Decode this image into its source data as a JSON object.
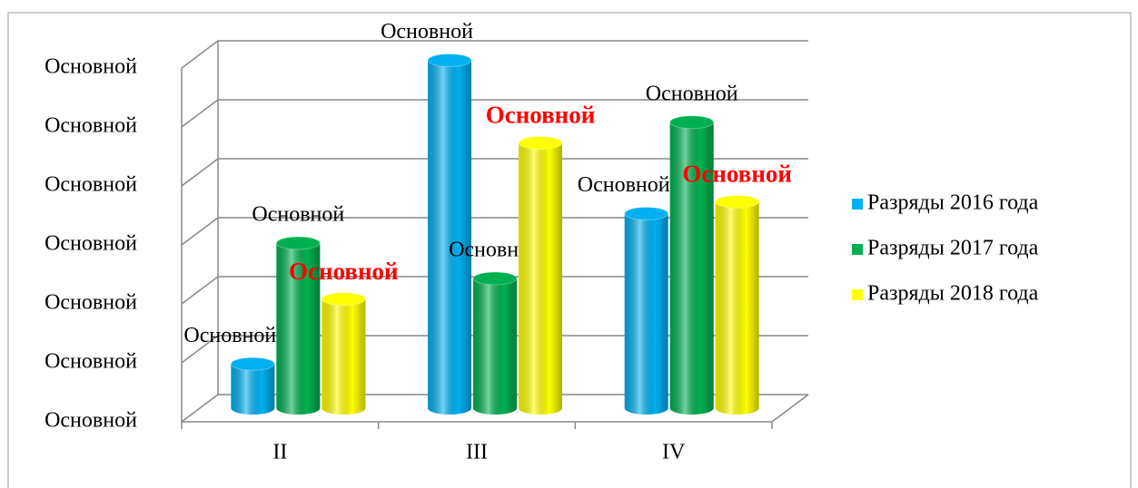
{
  "chart_data": {
    "type": "bar3d",
    "categories": [
      "II",
      "III",
      "IV"
    ],
    "series": [
      {
        "name": "Разряды 2016 года",
        "color": "#00b0f0",
        "values": [
          0.75,
          5.9,
          3.3
        ],
        "value_labels": [
          "Основной",
          "Основной",
          "Основной"
        ]
      },
      {
        "name": "Разряды 2017 года",
        "color": "#00b050",
        "values": [
          2.8,
          2.2,
          4.85
        ],
        "value_labels": [
          "Основной",
          "Основной",
          "Основной"
        ]
      },
      {
        "name": "Разряды 2018 года",
        "color": "#ffff00",
        "values": [
          1.85,
          4.5,
          3.5
        ],
        "value_labels": [
          "Основной",
          "Основной",
          "Основной"
        ]
      }
    ],
    "ylim": [
      0,
      6
    ],
    "yticks": [
      {
        "value": 0,
        "label": "Основной"
      },
      {
        "value": 1,
        "label": "Основной"
      },
      {
        "value": 2,
        "label": "Основной"
      },
      {
        "value": 3,
        "label": "Основной"
      },
      {
        "value": 4,
        "label": "Основной"
      },
      {
        "value": 5,
        "label": "Основной"
      },
      {
        "value": 6,
        "label": "Основной"
      }
    ],
    "grid": true,
    "legend": "right"
  }
}
